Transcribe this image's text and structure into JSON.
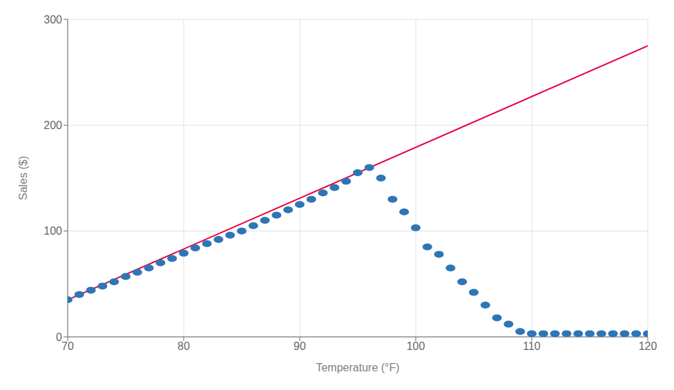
{
  "chart_data": {
    "type": "scatter",
    "xlabel": "Temperature (°F)",
    "ylabel": "Sales ($)",
    "xlim": [
      70,
      120
    ],
    "ylim": [
      0,
      300
    ],
    "xticks": [
      70,
      80,
      90,
      100,
      110,
      120
    ],
    "yticks": [
      0,
      100,
      200,
      300
    ],
    "grid": true,
    "series": [
      {
        "type": "scatter",
        "marker": "ellipse",
        "color": "#2E75B6",
        "x": [
          70,
          71,
          72,
          73,
          74,
          75,
          76,
          77,
          78,
          79,
          80,
          81,
          82,
          83,
          84,
          85,
          86,
          87,
          88,
          89,
          90,
          91,
          92,
          93,
          94,
          95,
          96,
          97,
          98,
          99,
          100,
          101,
          102,
          103,
          104,
          105,
          106,
          107,
          108,
          109,
          110,
          111,
          112,
          113,
          114,
          115,
          116,
          117,
          118,
          119,
          120
        ],
        "values": [
          35,
          40,
          44,
          48,
          52,
          57,
          61,
          65,
          70,
          74,
          79,
          84,
          88,
          92,
          96,
          100,
          105,
          110,
          115,
          120,
          125,
          130,
          136,
          141,
          147,
          155,
          160,
          150,
          130,
          118,
          103,
          85,
          78,
          65,
          52,
          42,
          30,
          18,
          12,
          5,
          3,
          3,
          3,
          3,
          3,
          3,
          3,
          3,
          3,
          3,
          3
        ]
      },
      {
        "type": "line",
        "color": "#E8003D",
        "x": [
          70,
          120
        ],
        "values": [
          35,
          275
        ]
      }
    ]
  }
}
